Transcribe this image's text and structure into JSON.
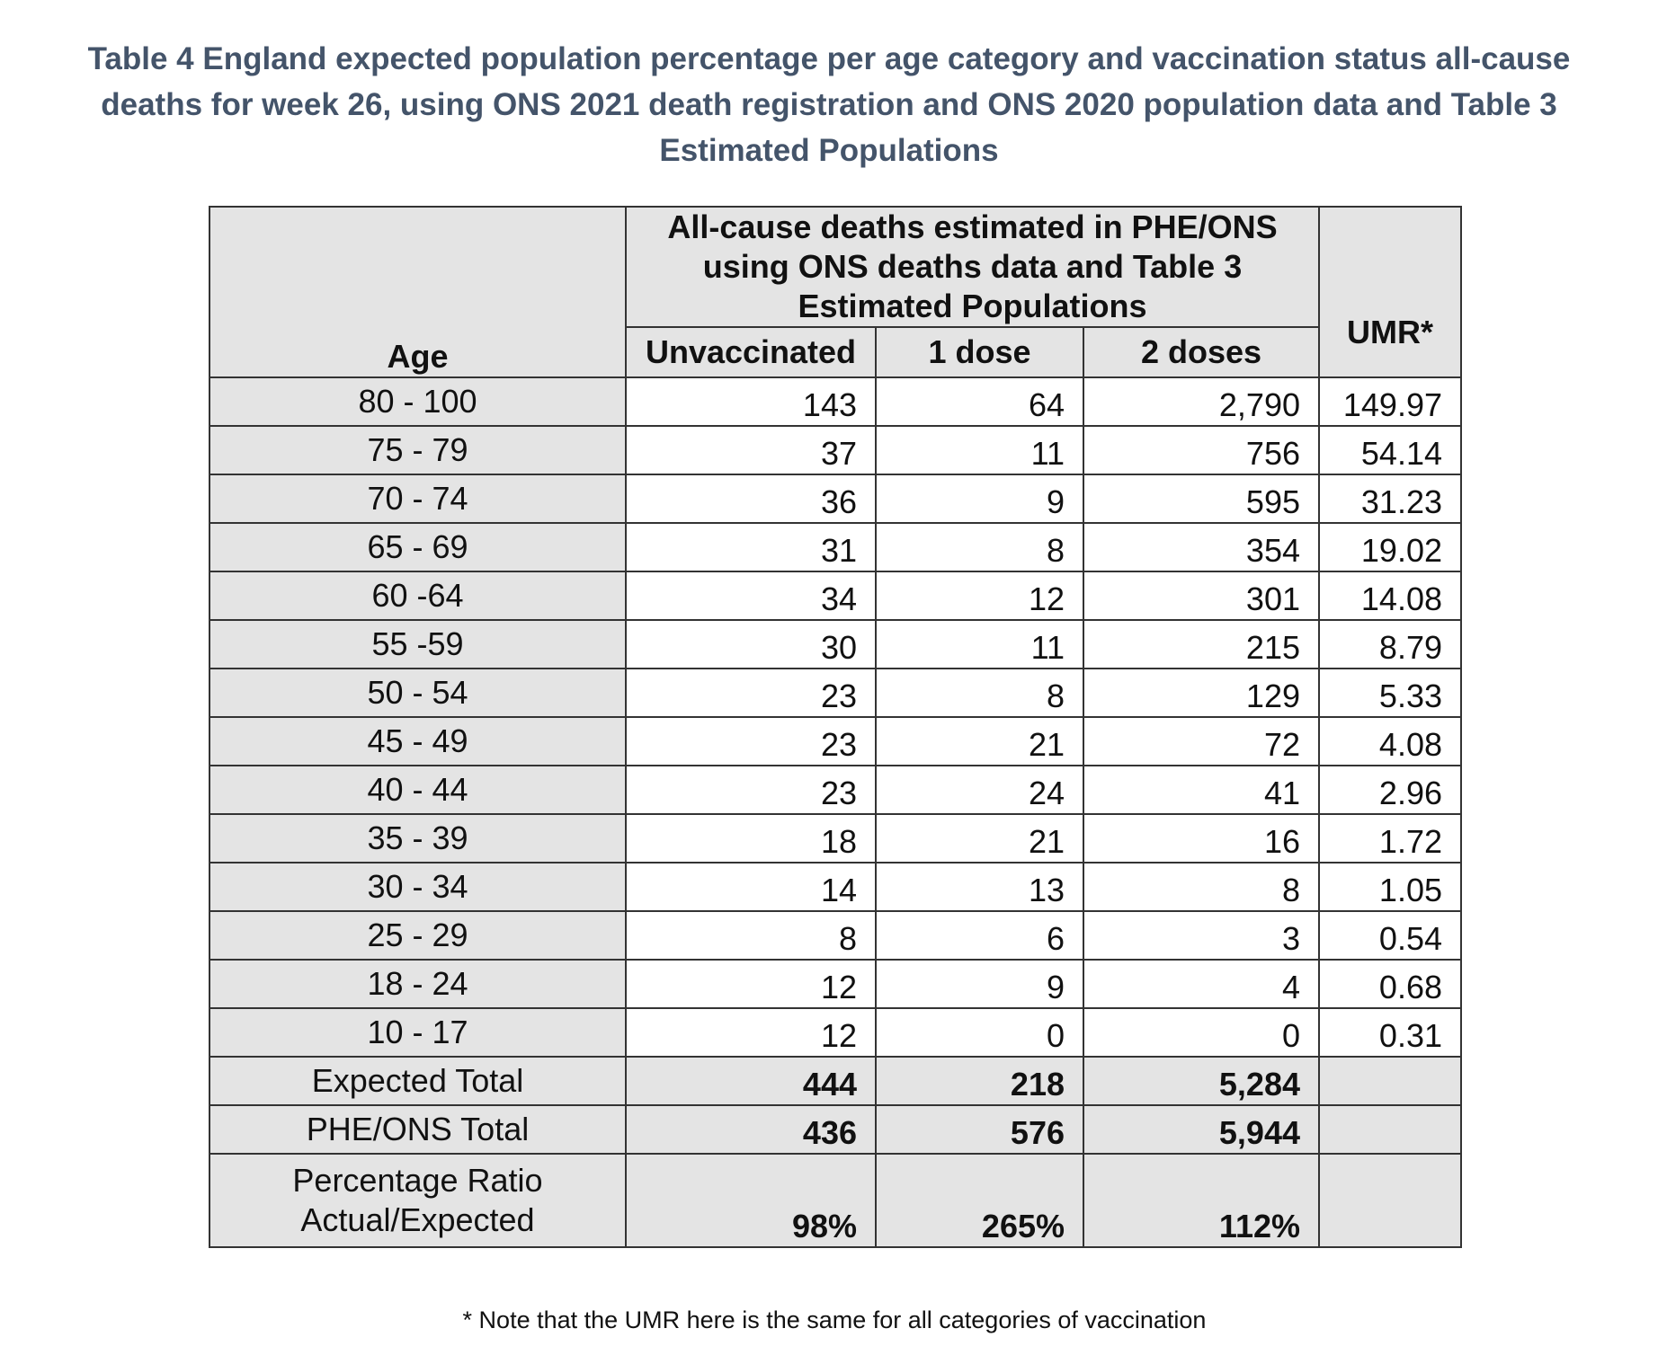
{
  "title": "Table 4 England expected population percentage per age category and vaccination status all-cause deaths for week 26, using ONS 2021 death registration and ONS 2020 population data and Table 3 Estimated Populations",
  "table": {
    "group_header": "All-cause deaths estimated in PHE/ONS using ONS deaths data and Table 3 Estimated Populations",
    "umr_header": "UMR*",
    "columns": [
      "Age",
      "Unvaccinated",
      "1 dose",
      "2 doses"
    ],
    "rows": [
      {
        "age": "80 - 100",
        "unvaccinated": "143",
        "dose1": "64",
        "dose2": "2,790",
        "umr": "149.97"
      },
      {
        "age": "75 - 79",
        "unvaccinated": "37",
        "dose1": "11",
        "dose2": "756",
        "umr": "54.14"
      },
      {
        "age": "70 - 74",
        "unvaccinated": "36",
        "dose1": "9",
        "dose2": "595",
        "umr": "31.23"
      },
      {
        "age": "65 - 69",
        "unvaccinated": "31",
        "dose1": "8",
        "dose2": "354",
        "umr": "19.02"
      },
      {
        "age": "60 -64",
        "unvaccinated": "34",
        "dose1": "12",
        "dose2": "301",
        "umr": "14.08"
      },
      {
        "age": "55 -59",
        "unvaccinated": "30",
        "dose1": "11",
        "dose2": "215",
        "umr": "8.79"
      },
      {
        "age": "50 - 54",
        "unvaccinated": "23",
        "dose1": "8",
        "dose2": "129",
        "umr": "5.33"
      },
      {
        "age": "45 - 49",
        "unvaccinated": "23",
        "dose1": "21",
        "dose2": "72",
        "umr": "4.08"
      },
      {
        "age": "40 - 44",
        "unvaccinated": "23",
        "dose1": "24",
        "dose2": "41",
        "umr": "2.96"
      },
      {
        "age": "35 - 39",
        "unvaccinated": "18",
        "dose1": "21",
        "dose2": "16",
        "umr": "1.72"
      },
      {
        "age": "30 - 34",
        "unvaccinated": "14",
        "dose1": "13",
        "dose2": "8",
        "umr": "1.05"
      },
      {
        "age": "25 - 29",
        "unvaccinated": "8",
        "dose1": "6",
        "dose2": "3",
        "umr": "0.54"
      },
      {
        "age": "18 - 24",
        "unvaccinated": "12",
        "dose1": "9",
        "dose2": "4",
        "umr": "0.68"
      },
      {
        "age": "10 - 17",
        "unvaccinated": "12",
        "dose1": "0",
        "dose2": "0",
        "umr": "0.31"
      }
    ],
    "totals": [
      {
        "label": "Expected Total",
        "unvaccinated": "444",
        "dose1": "218",
        "dose2": "5,284"
      },
      {
        "label": "PHE/ONS Total",
        "unvaccinated": "436",
        "dose1": "576",
        "dose2": "5,944"
      },
      {
        "label": "Percentage Ratio Actual/Expected",
        "unvaccinated": "98%",
        "dose1": "265%",
        "dose2": "112%"
      }
    ]
  },
  "note": "* Note that the UMR here is the same for all categories of vaccination",
  "colors": {
    "title": "#44546a",
    "shade": "#e4e4e4",
    "border": "#333333"
  }
}
